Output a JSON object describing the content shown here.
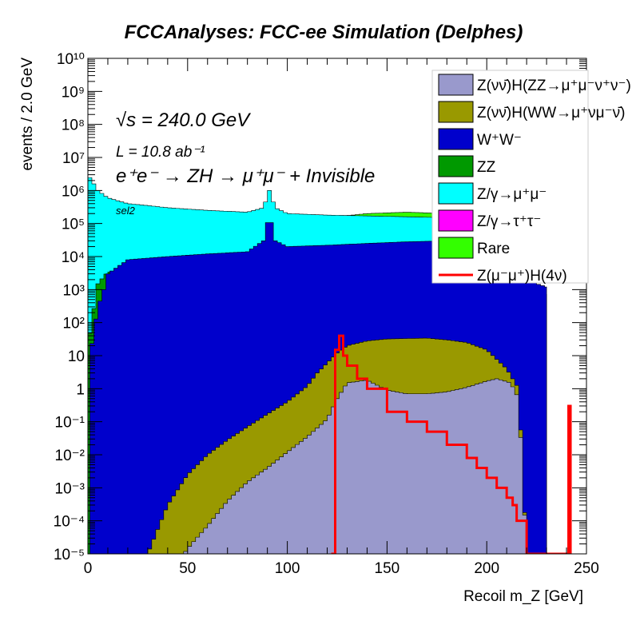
{
  "title": "FCCAnalyses: FCC-ee Simulation (Delphes)",
  "annotations": {
    "sqrt_s": "√s = 240.0 GeV",
    "lumi": "L = 10.8 ab⁻¹",
    "process": "e⁺e⁻ → ZH → μ⁺μ⁻ + Invisible",
    "selection": "sel2"
  },
  "chart_data": {
    "type": "area",
    "style": "stacked histogram (log y) with overlaid signal line",
    "title": "FCCAnalyses: FCC-ee Simulation (Delphes)",
    "xlabel": "Recoil m_Z [GeV]",
    "ylabel": "events / 2.0 GeV",
    "xlim": [
      0,
      250
    ],
    "ylim": [
      1e-05,
      10000000000.0
    ],
    "log_y": true,
    "grid": false,
    "legend_position": "top-right",
    "x_ticks": [
      "0",
      "50",
      "100",
      "150",
      "200",
      "250"
    ],
    "y_ticks": [
      "10⁻⁵",
      "10⁻⁴",
      "10⁻³",
      "10⁻²",
      "10⁻¹",
      "1",
      "10",
      "10²",
      "10³",
      "10⁴",
      "10⁵",
      "10⁶",
      "10⁷",
      "10⁸",
      "10⁹",
      "10¹⁰"
    ],
    "stack_tops_note": "cumulative top of each stacked layer (events / 2 GeV)",
    "series": [
      {
        "name": "Z(νν̄)H(ZZ→μ⁺μ⁻ν⁺ν⁻)",
        "color": "#9999cc",
        "x": [
          2,
          48,
          52,
          60,
          70,
          80,
          90,
          100,
          110,
          120,
          125,
          130,
          140,
          150,
          160,
          170,
          180,
          190,
          200,
          205,
          212,
          216,
          220
        ],
        "top": [
          1e-05,
          1e-05,
          2e-05,
          7e-05,
          0.0004,
          0.0015,
          0.004,
          0.012,
          0.035,
          0.12,
          0.5,
          1.5,
          1.8,
          0.9,
          0.7,
          0.7,
          0.8,
          1.1,
          1.7,
          2.0,
          1.5,
          0.5,
          1e-05
        ]
      },
      {
        "name": "Z(νν̄)H(WW→μ⁺νμ⁻ν̄)",
        "color": "#999900",
        "x": [
          2,
          30,
          40,
          50,
          60,
          70,
          80,
          90,
          100,
          110,
          115,
          120,
          125,
          130,
          140,
          150,
          160,
          170,
          180,
          190,
          200,
          210,
          216,
          220
        ],
        "top": [
          1e-05,
          1e-05,
          0.0003,
          0.0025,
          0.01,
          0.028,
          0.07,
          0.17,
          0.4,
          1.2,
          3.0,
          6.0,
          12,
          20,
          28,
          32,
          33,
          34,
          30,
          25,
          15,
          4,
          1.0,
          1e-05
        ]
      },
      {
        "name": "W⁺W⁻",
        "color": "#0000cc",
        "x": [
          1,
          5,
          8,
          10,
          20,
          40,
          60,
          80,
          88,
          91,
          94,
          100,
          120,
          140,
          160,
          180,
          200,
          220,
          225,
          230
        ],
        "top": [
          10,
          300,
          1000,
          3000,
          8000,
          10000,
          12000,
          14000,
          30000,
          200000,
          30000,
          20000,
          22000,
          25000,
          28000,
          30000,
          25000,
          3000,
          1500,
          1200
        ]
      },
      {
        "name": "ZZ",
        "color": "#009900",
        "x": [
          0,
          5,
          10,
          20,
          40,
          60,
          80,
          88,
          91,
          94,
          100,
          120,
          140,
          160,
          180,
          200,
          210,
          220,
          225,
          230
        ],
        "top": [
          20,
          1500,
          3500,
          2800,
          2200,
          2000,
          2200,
          8000,
          90000,
          8000,
          2500,
          1800,
          1500,
          1200,
          1100,
          1000,
          900,
          500,
          800,
          700
        ]
      },
      {
        "name": "Z/γ→μ⁺μ⁻",
        "color": "#00ffff",
        "x": [
          0,
          2,
          5,
          10,
          20,
          30,
          40,
          60,
          80,
          88,
          91,
          94,
          100,
          120,
          140,
          160,
          180,
          190
        ],
        "top": [
          3000000,
          2000000,
          1000000,
          600000,
          400000,
          350000,
          300000,
          250000,
          220000,
          300000,
          1000000,
          300000,
          200000,
          180000,
          170000,
          160000,
          150000,
          140000
        ]
      },
      {
        "name": "Z/γ→τ⁺τ⁻",
        "color": "#ff00ff",
        "x": [
          0,
          8,
          10,
          100,
          120,
          140,
          160,
          180,
          200,
          210
        ],
        "top": [
          50,
          20,
          2000,
          20000,
          8000,
          12000,
          15000,
          18000,
          25000,
          20000
        ]
      },
      {
        "name": "Rare",
        "color": "#33ff00",
        "x": [
          10,
          100,
          120,
          140,
          160,
          180,
          200
        ],
        "top": [
          50000,
          100000,
          150000,
          200000,
          220000,
          200000,
          150000
        ]
      },
      {
        "name": "Z(μ⁻μ⁺)H(4ν)",
        "color": "#ff0000",
        "type": "line",
        "x": [
          122,
          124,
          126,
          128,
          130,
          135,
          140,
          150,
          160,
          170,
          180,
          190,
          195,
          200,
          205,
          210,
          213,
          215,
          220,
          240,
          241,
          242
        ],
        "y": [
          1e-05,
          15,
          40,
          10,
          5,
          2,
          1,
          0.2,
          0.1,
          0.05,
          0.02,
          0.008,
          0.004,
          0.002,
          0.001,
          0.0005,
          0.0003,
          0.0001,
          1e-05,
          1e-05,
          0.3,
          1e-05
        ]
      }
    ]
  }
}
